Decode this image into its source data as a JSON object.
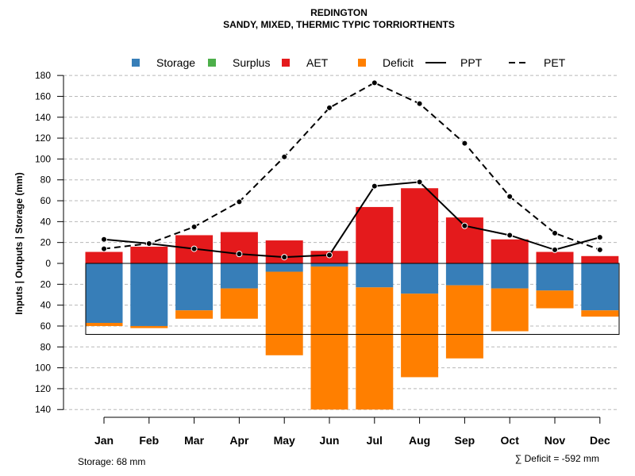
{
  "chart_data": {
    "type": "bar",
    "title": "REDINGTON",
    "subtitle": "SANDY, MIXED, THERMIC TYPIC TORRIORTHENTS",
    "ylabel": "Inputs | Outputs | Storage    (mm)",
    "ylim": [
      -140,
      180
    ],
    "yticks": [
      180,
      160,
      140,
      120,
      100,
      80,
      60,
      40,
      20,
      0,
      -20,
      -40,
      -60,
      -80,
      -100,
      -120,
      -140
    ],
    "ytick_labels": [
      "180",
      "160",
      "140",
      "120",
      "100",
      "80",
      "60",
      "40",
      "20",
      "0",
      "20",
      "40",
      "60",
      "80",
      "100",
      "120",
      "140"
    ],
    "categories": [
      "Jan",
      "Feb",
      "Mar",
      "Apr",
      "May",
      "Jun",
      "Jul",
      "Aug",
      "Sep",
      "Oct",
      "Nov",
      "Dec"
    ],
    "legend": [
      {
        "name": "Storage",
        "color": "#377eb8",
        "kind": "box"
      },
      {
        "name": "Surplus",
        "color": "#4daf4a",
        "kind": "box"
      },
      {
        "name": "AET",
        "color": "#e41a1c",
        "kind": "box"
      },
      {
        "name": "Deficit",
        "color": "#ff7f00",
        "kind": "box"
      },
      {
        "name": "PPT",
        "color": "#000000",
        "kind": "solid"
      },
      {
        "name": "PET",
        "color": "#000000",
        "kind": "dashed"
      }
    ],
    "series": [
      {
        "name": "AET",
        "color": "#e41a1c",
        "values": [
          11,
          16,
          27,
          30,
          22,
          12,
          54,
          72,
          44,
          23,
          11,
          7
        ]
      },
      {
        "name": "Storage",
        "color": "#377eb8",
        "values": [
          57,
          60,
          45,
          24,
          8,
          3,
          23,
          29,
          21,
          24,
          26,
          45
        ]
      },
      {
        "name": "Deficit",
        "color": "#ff7f00",
        "values": [
          3,
          2,
          8,
          29,
          80,
          137,
          117,
          80,
          70,
          41,
          17,
          6
        ]
      },
      {
        "name": "PPT",
        "color": "#000000",
        "values": [
          23,
          19,
          14,
          9,
          6,
          8,
          74,
          78,
          36,
          27,
          13,
          25
        ]
      },
      {
        "name": "PET",
        "color": "#000000",
        "values": [
          14,
          19,
          35,
          59,
          102,
          149,
          173,
          153,
          115,
          64,
          29,
          13
        ]
      }
    ],
    "storage_capacity": 68,
    "grid": true,
    "legend_position": "top"
  },
  "footer": {
    "storage_label": "Storage: 68 mm",
    "deficit_label": "∑ Deficit = -592 mm"
  }
}
